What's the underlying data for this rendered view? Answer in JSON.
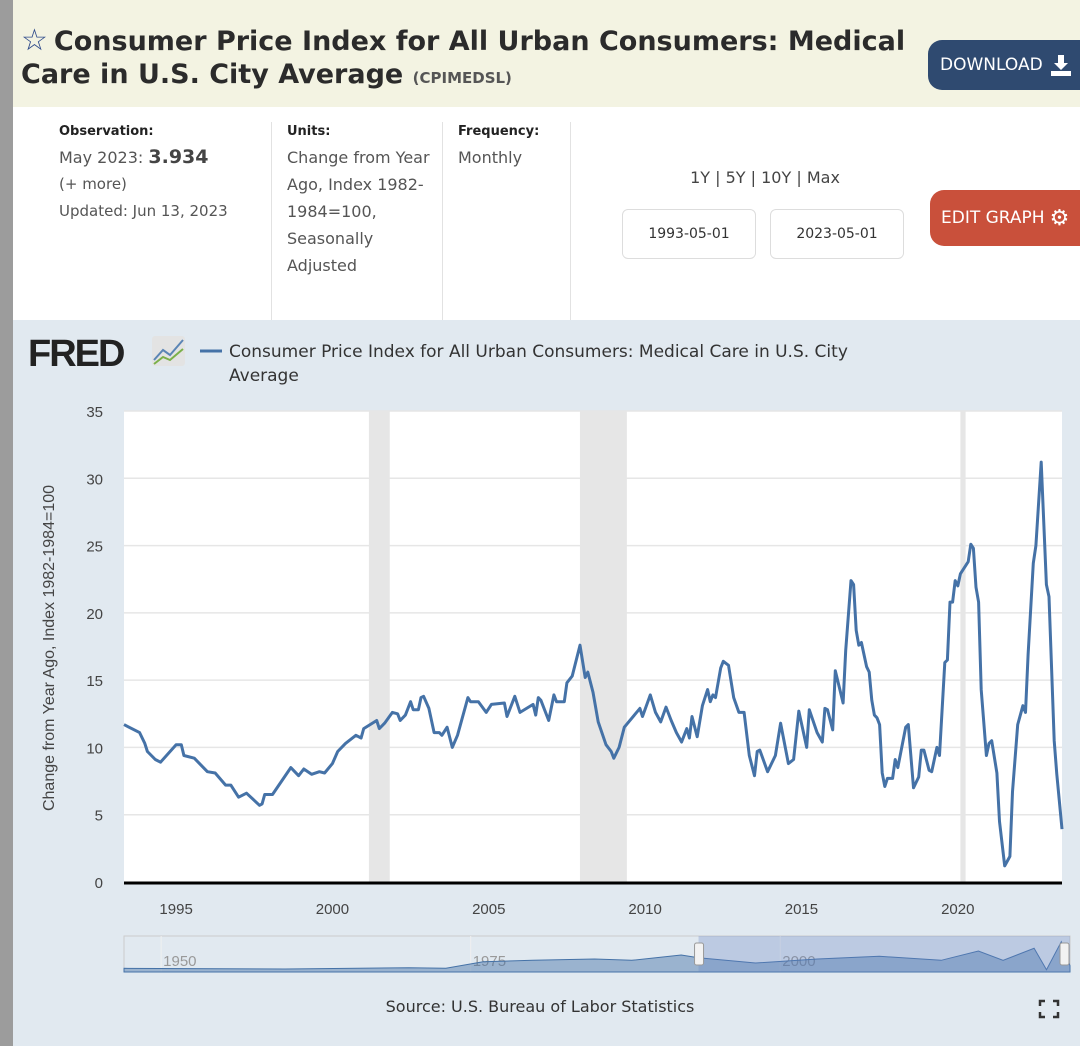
{
  "header": {
    "title": "Consumer Price Index for All Urban Consumers: Medical Care in U.S. City Average",
    "series_id": "(CPIMEDSL)",
    "star_icon": "star-outline",
    "download_label": "DOWNLOAD",
    "download_icon": "download-icon"
  },
  "info": {
    "observation_label": "Observation:",
    "observation_date": "May 2023:",
    "observation_value": "3.934",
    "more_link": "(+ more)",
    "updated": "Updated: Jun 13, 2023",
    "units_label": "Units:",
    "units_value": "Change from Year Ago, Index 1982-1984=100, Seasonally Adjusted",
    "frequency_label": "Frequency:",
    "frequency_value": "Monthly"
  },
  "controls": {
    "ranges": [
      "1Y",
      "5Y",
      "10Y",
      "Max"
    ],
    "start_date": "1993-05-01",
    "end_date": "2023-05-01",
    "edit_graph_label": "EDIT GRAPH",
    "edit_icon": "gear-icon"
  },
  "logo": "FRED",
  "source": "Source: U.S. Bureau of Labor Statistics",
  "colors": {
    "line": "#4572a7",
    "recession": "#e6e6e6",
    "download_bg": "#2f4a70",
    "edit_bg": "#c9503b",
    "chart_bg": "#e1e9f0"
  },
  "chart_data": {
    "type": "line",
    "title": "",
    "xlabel": "",
    "ylabel": "Change from Year Ago, Index 1982-1984=100",
    "ylim": [
      0,
      35
    ],
    "yticks": [
      "0",
      "5",
      "10",
      "15",
      "20",
      "25",
      "30",
      "35"
    ],
    "xlim": [
      "1993-05",
      "2023-05"
    ],
    "xticks": [
      "1995",
      "2000",
      "2005",
      "2010",
      "2015",
      "2020"
    ],
    "grid": "horizontal",
    "legend_position": "top-left",
    "recessions": [
      [
        "2001-03",
        "2001-11"
      ],
      [
        "2007-12",
        "2009-06"
      ],
      [
        "2020-02",
        "2020-04"
      ]
    ],
    "navigator_ticks": [
      "1950",
      "1975",
      "2000"
    ],
    "series": [
      {
        "name": "Consumer Price Index for All Urban Consumers: Medical Care in U.S. City Average",
        "points": [
          [
            "1993-05",
            11.7
          ],
          [
            "1993-11",
            11.1
          ],
          [
            "1994-01",
            10.3
          ],
          [
            "1994-02",
            9.7
          ],
          [
            "1994-05",
            9.1
          ],
          [
            "1994-07",
            8.9
          ],
          [
            "1995-01",
            10.2
          ],
          [
            "1995-03",
            10.2
          ],
          [
            "1995-04",
            9.4
          ],
          [
            "1995-08",
            9.2
          ],
          [
            "1996-01",
            8.2
          ],
          [
            "1996-04",
            8.1
          ],
          [
            "1996-08",
            7.2
          ],
          [
            "1996-10",
            7.2
          ],
          [
            "1997-01",
            6.3
          ],
          [
            "1997-04",
            6.6
          ],
          [
            "1997-09",
            5.7
          ],
          [
            "1997-10",
            5.8
          ],
          [
            "1997-11",
            6.5
          ],
          [
            "1998-02",
            6.5
          ],
          [
            "1998-09",
            8.5
          ],
          [
            "1998-12",
            7.9
          ],
          [
            "1999-02",
            8.4
          ],
          [
            "1999-05",
            8.0
          ],
          [
            "1999-08",
            8.2
          ],
          [
            "1999-10",
            8.1
          ],
          [
            "2000-01",
            8.8
          ],
          [
            "2000-03",
            9.7
          ],
          [
            "2000-06",
            10.3
          ],
          [
            "2000-10",
            10.9
          ],
          [
            "2000-12",
            10.7
          ],
          [
            "2001-01",
            11.4
          ],
          [
            "2001-06",
            12.0
          ],
          [
            "2001-07",
            11.4
          ],
          [
            "2001-09",
            11.8
          ],
          [
            "2001-12",
            12.6
          ],
          [
            "2002-02",
            12.5
          ],
          [
            "2002-03",
            12.0
          ],
          [
            "2002-05",
            12.4
          ],
          [
            "2002-07",
            13.4
          ],
          [
            "2002-08",
            12.8
          ],
          [
            "2002-10",
            12.8
          ],
          [
            "2002-11",
            13.7
          ],
          [
            "2002-12",
            13.8
          ],
          [
            "2003-02",
            12.9
          ],
          [
            "2003-04",
            11.1
          ],
          [
            "2003-06",
            11.1
          ],
          [
            "2003-07",
            10.9
          ],
          [
            "2003-09",
            11.5
          ],
          [
            "2003-11",
            10.0
          ],
          [
            "2004-01",
            10.9
          ],
          [
            "2004-05",
            13.7
          ],
          [
            "2004-06",
            13.4
          ],
          [
            "2004-09",
            13.4
          ],
          [
            "2004-12",
            12.6
          ],
          [
            "2005-02",
            13.2
          ],
          [
            "2005-07",
            13.3
          ],
          [
            "2005-08",
            12.3
          ],
          [
            "2005-11",
            13.8
          ],
          [
            "2006-01",
            12.6
          ],
          [
            "2006-06",
            13.2
          ],
          [
            "2006-07",
            12.4
          ],
          [
            "2006-08",
            13.7
          ],
          [
            "2006-09",
            13.5
          ],
          [
            "2006-12",
            12.0
          ],
          [
            "2007-02",
            13.9
          ],
          [
            "2007-03",
            13.4
          ],
          [
            "2007-06",
            13.4
          ],
          [
            "2007-07",
            14.8
          ],
          [
            "2007-09",
            15.3
          ],
          [
            "2007-12",
            17.6
          ],
          [
            "2008-02",
            15.2
          ],
          [
            "2008-03",
            15.6
          ],
          [
            "2008-05",
            14.1
          ],
          [
            "2008-07",
            11.9
          ],
          [
            "2008-10",
            10.2
          ],
          [
            "2008-12",
            9.7
          ],
          [
            "2009-01",
            9.2
          ],
          [
            "2009-03",
            10.0
          ],
          [
            "2009-05",
            11.5
          ],
          [
            "2009-11",
            12.9
          ],
          [
            "2009-12",
            12.3
          ],
          [
            "2010-03",
            13.9
          ],
          [
            "2010-05",
            12.6
          ],
          [
            "2010-07",
            11.9
          ],
          [
            "2010-09",
            13.0
          ],
          [
            "2010-11",
            12.0
          ],
          [
            "2011-01",
            11.1
          ],
          [
            "2011-03",
            10.4
          ],
          [
            "2011-05",
            11.4
          ],
          [
            "2011-06",
            10.7
          ],
          [
            "2011-07",
            12.3
          ],
          [
            "2011-09",
            10.8
          ],
          [
            "2011-11",
            13.1
          ],
          [
            "2012-01",
            14.3
          ],
          [
            "2012-02",
            13.4
          ],
          [
            "2012-03",
            13.9
          ],
          [
            "2012-04",
            13.7
          ],
          [
            "2012-06",
            15.9
          ],
          [
            "2012-07",
            16.4
          ],
          [
            "2012-09",
            16.1
          ],
          [
            "2012-11",
            13.7
          ],
          [
            "2013-01",
            12.6
          ],
          [
            "2013-03",
            12.6
          ],
          [
            "2013-05",
            9.4
          ],
          [
            "2013-07",
            7.9
          ],
          [
            "2013-08",
            9.7
          ],
          [
            "2013-09",
            9.8
          ],
          [
            "2013-12",
            8.2
          ],
          [
            "2014-03",
            9.4
          ],
          [
            "2014-05",
            11.8
          ],
          [
            "2014-06",
            10.8
          ],
          [
            "2014-08",
            8.8
          ],
          [
            "2014-10",
            9.1
          ],
          [
            "2014-12",
            12.7
          ],
          [
            "2015-03",
            10.0
          ],
          [
            "2015-04",
            12.8
          ],
          [
            "2015-07",
            11.1
          ],
          [
            "2015-09",
            10.4
          ],
          [
            "2015-10",
            12.9
          ],
          [
            "2015-11",
            12.8
          ],
          [
            "2016-01",
            11.3
          ],
          [
            "2016-02",
            15.7
          ],
          [
            "2016-05",
            13.3
          ],
          [
            "2016-06",
            17.2
          ],
          [
            "2016-08",
            22.4
          ],
          [
            "2016-09",
            22.1
          ],
          [
            "2016-10",
            18.7
          ],
          [
            "2016-11",
            17.6
          ],
          [
            "2016-12",
            17.8
          ],
          [
            "2017-02",
            16.0
          ],
          [
            "2017-03",
            15.6
          ],
          [
            "2017-04",
            13.5
          ],
          [
            "2017-05",
            12.4
          ],
          [
            "2017-06",
            12.2
          ],
          [
            "2017-07",
            11.7
          ],
          [
            "2017-08",
            8.1
          ],
          [
            "2017-09",
            7.1
          ],
          [
            "2017-10",
            7.7
          ],
          [
            "2017-12",
            7.7
          ],
          [
            "2018-01",
            9.1
          ],
          [
            "2018-02",
            8.5
          ],
          [
            "2018-05",
            11.5
          ],
          [
            "2018-06",
            11.7
          ],
          [
            "2018-08",
            7.0
          ],
          [
            "2018-10",
            7.8
          ],
          [
            "2018-11",
            9.8
          ],
          [
            "2018-12",
            9.8
          ],
          [
            "2019-02",
            8.3
          ],
          [
            "2019-03",
            8.2
          ],
          [
            "2019-05",
            10.0
          ],
          [
            "2019-06",
            9.4
          ],
          [
            "2019-08",
            16.3
          ],
          [
            "2019-09",
            16.5
          ],
          [
            "2019-10",
            20.8
          ],
          [
            "2019-11",
            20.8
          ],
          [
            "2019-12",
            22.4
          ],
          [
            "2020-01",
            22.0
          ],
          [
            "2020-02",
            22.9
          ],
          [
            "2020-05",
            23.8
          ],
          [
            "2020-06",
            25.1
          ],
          [
            "2020-07",
            24.8
          ],
          [
            "2020-08",
            21.9
          ],
          [
            "2020-09",
            20.8
          ],
          [
            "2020-10",
            14.3
          ],
          [
            "2020-12",
            9.4
          ],
          [
            "2021-01",
            10.3
          ],
          [
            "2021-02",
            10.5
          ],
          [
            "2021-04",
            8.1
          ],
          [
            "2021-05",
            4.5
          ],
          [
            "2021-07",
            1.2
          ],
          [
            "2021-09",
            1.9
          ],
          [
            "2021-10",
            6.7
          ],
          [
            "2021-12",
            11.7
          ],
          [
            "2022-02",
            13.1
          ],
          [
            "2022-03",
            12.6
          ],
          [
            "2022-04",
            16.9
          ],
          [
            "2022-06",
            23.7
          ],
          [
            "2022-07",
            25.0
          ],
          [
            "2022-09",
            31.2
          ],
          [
            "2022-11",
            22.1
          ],
          [
            "2022-12",
            21.2
          ],
          [
            "2023-02",
            10.5
          ],
          [
            "2023-03",
            8.0
          ],
          [
            "2023-05",
            3.934
          ]
        ]
      }
    ]
  }
}
